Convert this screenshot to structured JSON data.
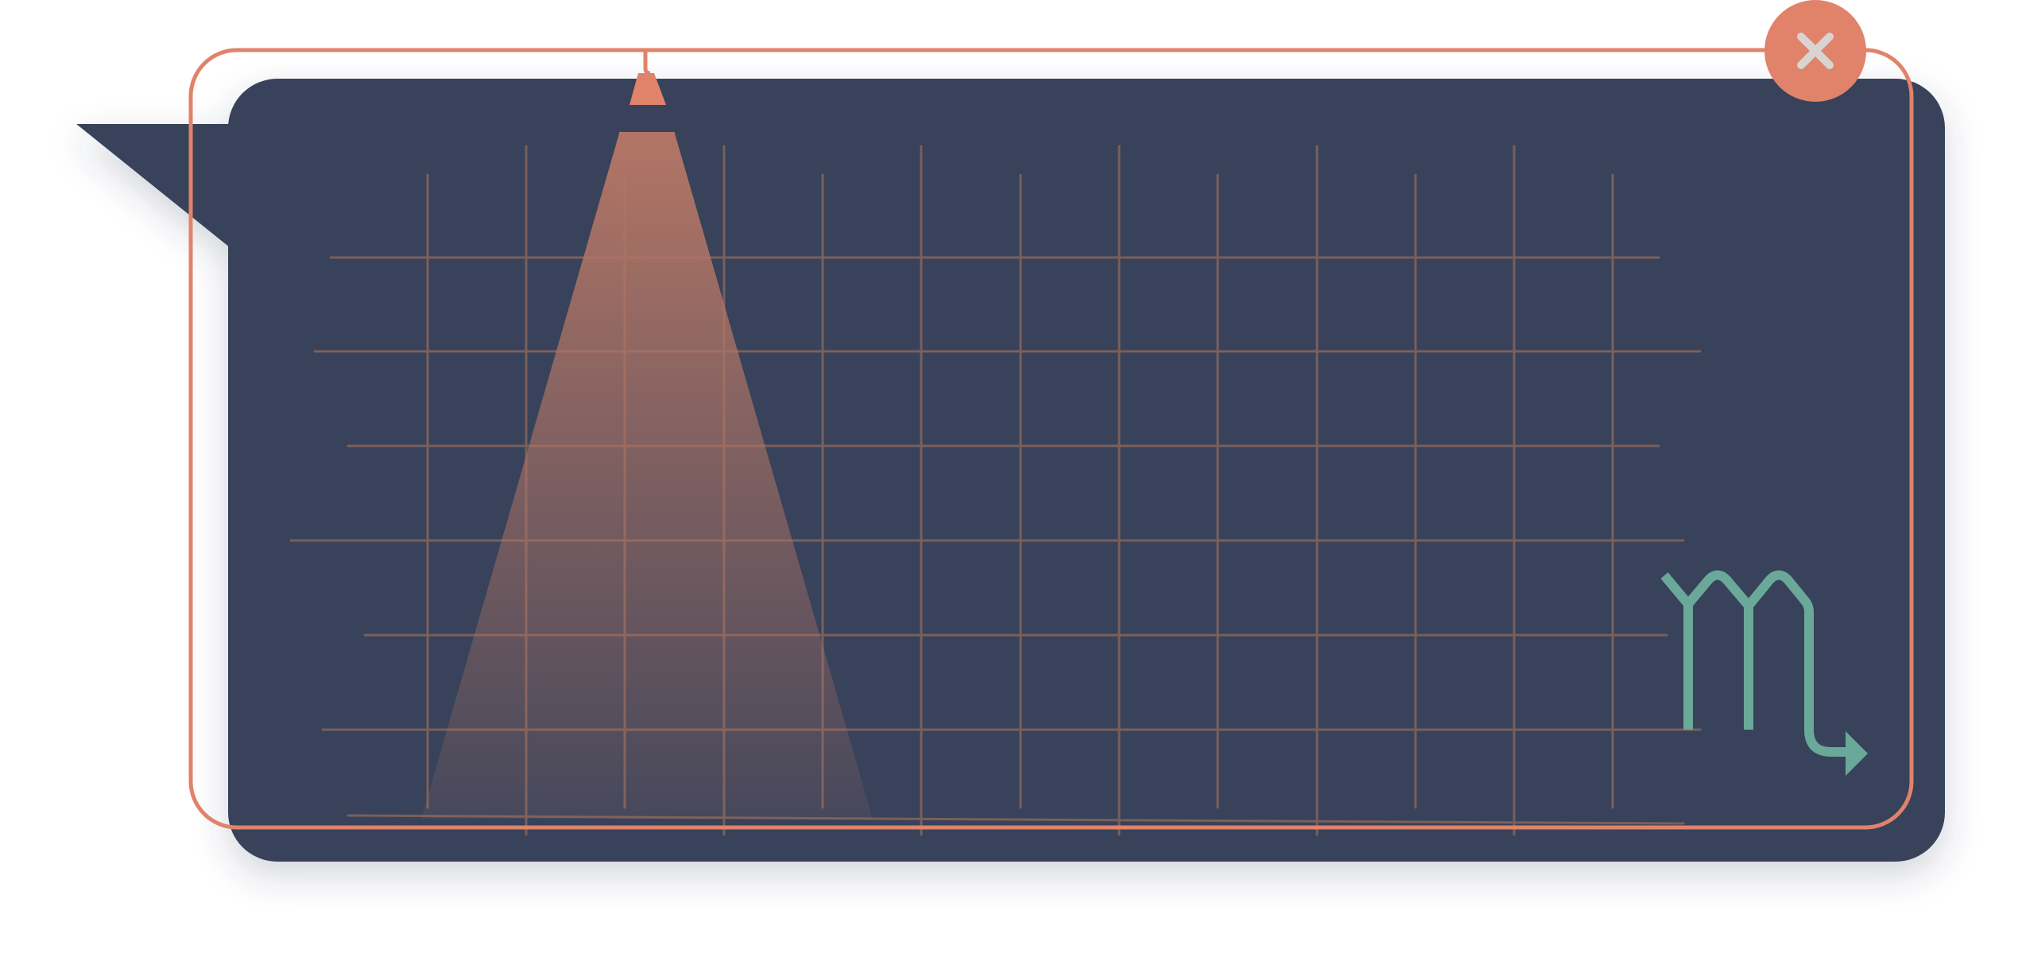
{
  "card": {
    "background_color": "#39435a",
    "frame_color": "#e0836a",
    "grid_color": "#7a5f5a",
    "spotlight_color": "#b27565"
  },
  "icons": {
    "close": "close-icon",
    "zodiac": "scorpio-icon",
    "spotlight": "spotlight-lamp-icon"
  },
  "zodiac_color": "#6aa89a",
  "close_color": "#e0836a",
  "close_glyph_color": "#d9d4d2"
}
